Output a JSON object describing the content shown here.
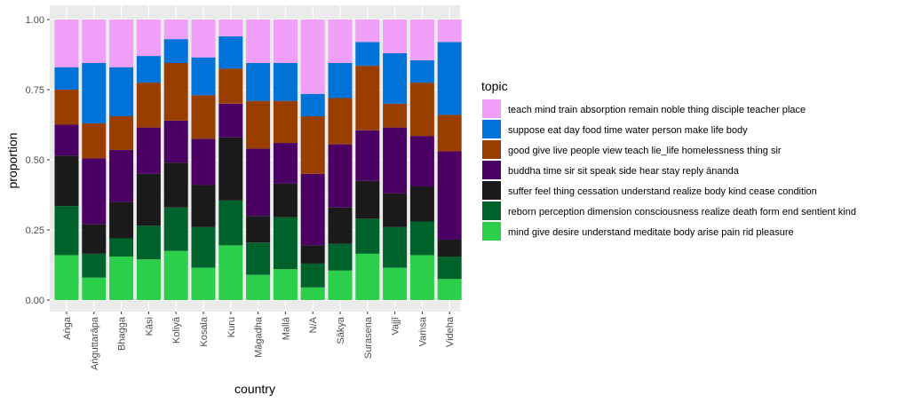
{
  "chart_data": {
    "type": "bar",
    "stacked": true,
    "xlabel": "country",
    "ylabel": "proportion",
    "ylim": [
      0,
      1
    ],
    "yticks": [
      0,
      0.25,
      0.5,
      0.75,
      1
    ],
    "ytick_labels": [
      "0.00",
      "0.25",
      "0.50",
      "0.75",
      "1.00"
    ],
    "grid": true,
    "legend_position": "right",
    "legend_title": "topic",
    "categories": [
      "Aṅga",
      "Aṅguttarāpa",
      "Bhagga",
      "Kāsi",
      "Koliyā",
      "Kosala",
      "Kuru",
      "Māgadha",
      "Mallā",
      "N/A",
      "Sākya",
      "Surasena",
      "Vajjī",
      "Vaṁsa",
      "Videha"
    ],
    "series": [
      {
        "name": "mind give desire understand meditate body arise pain rid pleasure",
        "color": "#2bcf4a",
        "values": [
          0.16,
          0.08,
          0.155,
          0.145,
          0.175,
          0.115,
          0.195,
          0.09,
          0.11,
          0.045,
          0.105,
          0.165,
          0.115,
          0.16,
          0.075
        ]
      },
      {
        "name": "reborn perception dimension consciousness realize death form end sentient kind",
        "color": "#00622b",
        "values": [
          0.175,
          0.085,
          0.065,
          0.12,
          0.155,
          0.145,
          0.16,
          0.115,
          0.185,
          0.085,
          0.095,
          0.125,
          0.145,
          0.12,
          0.08
        ]
      },
      {
        "name": "suffer feel thing cessation understand realize body kind cease condition",
        "color": "#1a1a1a",
        "values": [
          0.18,
          0.105,
          0.13,
          0.185,
          0.16,
          0.15,
          0.225,
          0.095,
          0.12,
          0.065,
          0.13,
          0.135,
          0.12,
          0.125,
          0.06
        ]
      },
      {
        "name": "buddha time sir sit speak side hear stay reply ānanda",
        "color": "#4b0063",
        "values": [
          0.11,
          0.235,
          0.185,
          0.165,
          0.15,
          0.165,
          0.12,
          0.24,
          0.145,
          0.255,
          0.225,
          0.18,
          0.235,
          0.18,
          0.315
        ]
      },
      {
        "name": "good give live people view teach lie_life homelessness thing sir",
        "color": "#9a3e00",
        "values": [
          0.125,
          0.125,
          0.12,
          0.16,
          0.205,
          0.155,
          0.125,
          0.17,
          0.15,
          0.205,
          0.165,
          0.23,
          0.085,
          0.19,
          0.13
        ]
      },
      {
        "name": "suppose eat day food time water person make life body",
        "color": "#0072d8",
        "values": [
          0.08,
          0.215,
          0.175,
          0.095,
          0.085,
          0.135,
          0.115,
          0.135,
          0.135,
          0.08,
          0.125,
          0.085,
          0.18,
          0.08,
          0.26
        ]
      },
      {
        "name": "teach mind train absorption remain noble thing disciple teacher place",
        "color": "#f0a0f8",
        "values": [
          0.17,
          0.155,
          0.17,
          0.13,
          0.07,
          0.135,
          0.06,
          0.155,
          0.155,
          0.265,
          0.155,
          0.08,
          0.12,
          0.145,
          0.08
        ]
      }
    ]
  }
}
